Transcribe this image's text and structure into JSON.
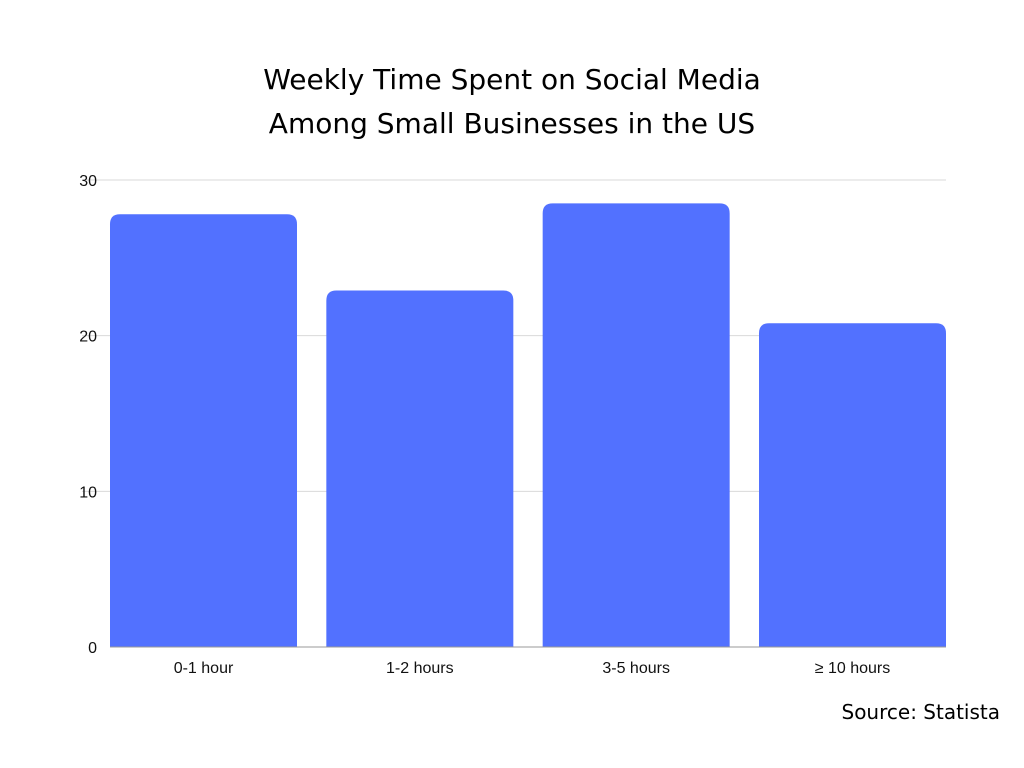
{
  "title_lines": [
    "Weekly Time Spent on Social Media",
    "Among Small Businesses in the US"
  ],
  "source": "Source: Statista",
  "colors": {
    "bar": "#5271ff",
    "grid": "#d9d9d9",
    "axis": "#999999"
  },
  "chart_data": {
    "type": "bar",
    "title": "Weekly Time Spent on Social Media Among Small Businesses in the US",
    "categories": [
      "0-1 hour",
      "1-2 hours",
      "3-5 hours",
      "≥ 10 hours"
    ],
    "values": [
      27.8,
      22.9,
      28.5,
      20.8
    ],
    "xlabel": "",
    "ylabel": "",
    "ylim": [
      0,
      30
    ],
    "yticks": [
      "0",
      "10",
      "20",
      "30"
    ],
    "grid": true,
    "legend": "none"
  }
}
